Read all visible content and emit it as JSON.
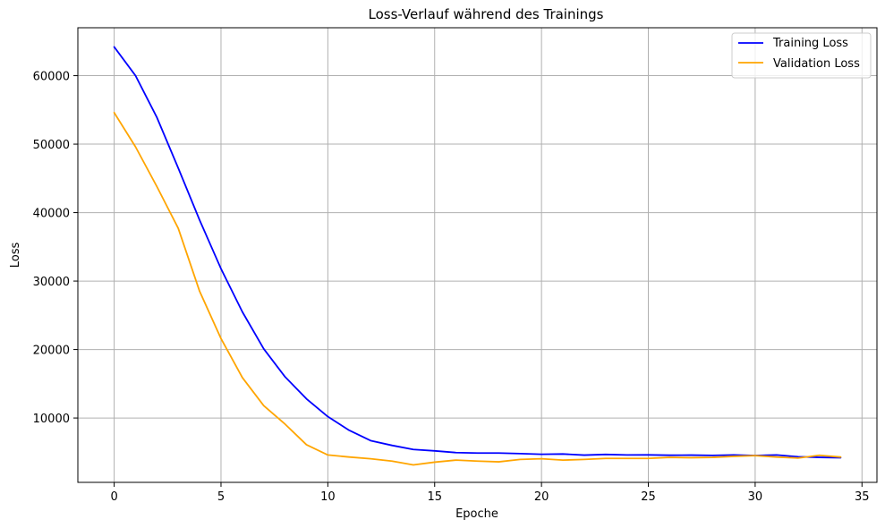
{
  "chart_data": {
    "type": "line",
    "title": "Loss-Verlauf während des Trainings",
    "xlabel": "Epoche",
    "ylabel": "Loss",
    "xlim": [
      -1.7,
      35.7
    ],
    "ylim": [
      600,
      67000
    ],
    "xticks": [
      0,
      5,
      10,
      15,
      20,
      25,
      30,
      35
    ],
    "yticks": [
      10000,
      20000,
      30000,
      40000,
      50000,
      60000
    ],
    "grid": true,
    "legend_position": "top-right",
    "x": [
      0,
      1,
      2,
      3,
      4,
      5,
      6,
      7,
      8,
      9,
      10,
      11,
      12,
      13,
      14,
      15,
      16,
      17,
      18,
      19,
      20,
      21,
      22,
      23,
      24,
      25,
      26,
      27,
      28,
      29,
      30,
      31,
      32,
      33,
      34
    ],
    "series": [
      {
        "name": "Training Loss",
        "color": "#0000ff",
        "values": [
          64200,
          60000,
          53900,
          46500,
          38900,
          31800,
          25500,
          20100,
          16000,
          12800,
          10200,
          8200,
          6700,
          6000,
          5400,
          5200,
          4950,
          4880,
          4880,
          4800,
          4700,
          4740,
          4580,
          4680,
          4600,
          4610,
          4560,
          4580,
          4540,
          4600,
          4520,
          4600,
          4340,
          4250,
          4200
        ]
      },
      {
        "name": "Validation Loss",
        "color": "#ffa500",
        "values": [
          54600,
          49600,
          43800,
          37700,
          28500,
          21600,
          15900,
          11800,
          9100,
          6100,
          4600,
          4300,
          4050,
          3700,
          3150,
          3550,
          3850,
          3700,
          3600,
          3950,
          4050,
          3850,
          3950,
          4100,
          4100,
          4100,
          4250,
          4200,
          4250,
          4400,
          4500,
          4300,
          4150,
          4550,
          4300
        ]
      }
    ]
  }
}
